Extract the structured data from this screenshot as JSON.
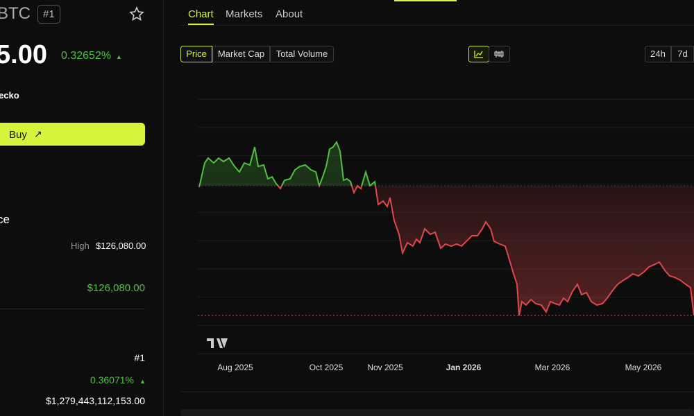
{
  "sidebar": {
    "symbol": "BTC",
    "rank_badge": "#1",
    "price": "5.00",
    "change": "0.32652%",
    "change_arrow": "▲",
    "source": "ecko",
    "buy_button": "Buy",
    "buy_icon": "↗",
    "section_title": "ce",
    "high_label": "High",
    "high_value": "$126,080.00",
    "all_time_high": "$126,080.00",
    "rank": "#1",
    "market_cap_change": "0.36071%",
    "market_cap_arrow": "▲",
    "market_cap": "$1,279,443,112,153.00"
  },
  "tabs": [
    "Chart",
    "Markets",
    "About"
  ],
  "metric_buttons": [
    "Price",
    "Market Cap",
    "Total Volume"
  ],
  "range_buttons": [
    "24h",
    "7d"
  ],
  "x_axis_labels": [
    "Aug 2025",
    "Oct 2025",
    "Nov 2025",
    "Jan 2026",
    "Mar 2026",
    "May 2026"
  ]
}
